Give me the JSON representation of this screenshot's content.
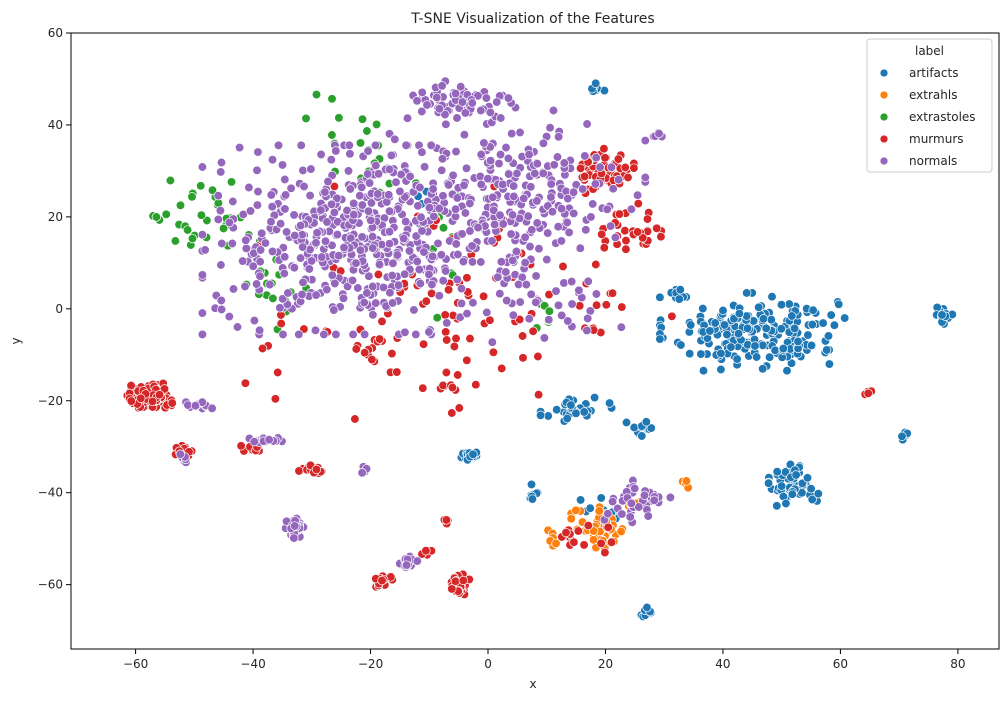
{
  "chart_data": {
    "type": "scatter",
    "title": "T-SNE Visualization of the Features",
    "xlabel": "x",
    "ylabel": "y",
    "xlim": [
      -71,
      87
    ],
    "ylim": [
      -74,
      60
    ],
    "xticks": [
      -60,
      -40,
      -20,
      0,
      20,
      40,
      60,
      80
    ],
    "yticks": [
      -60,
      -40,
      -20,
      0,
      20,
      40,
      60
    ],
    "grid": false,
    "legend": {
      "title": "label",
      "placement": "top-right"
    },
    "series": [
      {
        "name": "artifacts",
        "color": "#1f77b4",
        "clusters": [
          {
            "center": [
              45,
              -5
            ],
            "spread": [
              13,
              7
            ],
            "count": 220
          },
          {
            "center": [
              52,
              -38
            ],
            "spread": [
              3.5,
              4
            ],
            "count": 60
          },
          {
            "center": [
              15,
              -22
            ],
            "spread": [
              5,
              2.5
            ],
            "count": 30
          },
          {
            "center": [
              26,
              -26
            ],
            "spread": [
              2,
              3
            ],
            "count": 12
          },
          {
            "center": [
              -3,
              -32
            ],
            "spread": [
              1.5,
              1
            ],
            "count": 18
          },
          {
            "center": [
              27,
              -66
            ],
            "spread": [
              1,
              1
            ],
            "count": 10
          },
          {
            "center": [
              71,
              -27.5
            ],
            "spread": [
              1,
              1
            ],
            "count": 8
          },
          {
            "center": [
              77,
              -1.5
            ],
            "spread": [
              2,
              1.5
            ],
            "count": 14
          },
          {
            "center": [
              8,
              -40
            ],
            "spread": [
              1,
              1.5
            ],
            "count": 8
          },
          {
            "center": [
              19,
              -43
            ],
            "spread": [
              4,
              3
            ],
            "count": 12
          },
          {
            "center": [
              19,
              48
            ],
            "spread": [
              1.5,
              1
            ],
            "count": 8
          },
          {
            "center": [
              33,
              3
            ],
            "spread": [
              2,
              2
            ],
            "count": 8
          },
          {
            "center": [
              -12,
              25
            ],
            "spread": [
              4,
              3
            ],
            "count": 5
          }
        ]
      },
      {
        "name": "extrahls",
        "color": "#ff7f0e",
        "clusters": [
          {
            "center": [
              19,
              -48
            ],
            "spread": [
              4,
              4
            ],
            "count": 55
          },
          {
            "center": [
              11,
              -50
            ],
            "spread": [
              1,
              1.5
            ],
            "count": 6
          },
          {
            "center": [
              25,
              -42
            ],
            "spread": [
              1.5,
              1.5
            ],
            "count": 8
          },
          {
            "center": [
              34,
              -38
            ],
            "spread": [
              0.7,
              1
            ],
            "count": 5
          }
        ]
      },
      {
        "name": "extrastoles",
        "color": "#2ca02c",
        "clusters": [
          {
            "center": [
              -48,
              20
            ],
            "spread": [
              6,
              8
            ],
            "count": 28
          },
          {
            "center": [
              -37,
              5
            ],
            "spread": [
              5,
              8
            ],
            "count": 18
          },
          {
            "center": [
              -20,
              30
            ],
            "spread": [
              5,
              10
            ],
            "count": 14
          },
          {
            "center": [
              -8,
              15
            ],
            "spread": [
              5,
              15
            ],
            "count": 12
          },
          {
            "center": [
              -25,
              42
            ],
            "spread": [
              10,
              5
            ],
            "count": 8
          },
          {
            "center": [
              10,
              -1
            ],
            "spread": [
              3,
              3
            ],
            "count": 6
          },
          {
            "center": [
              -56,
              20
            ],
            "spread": [
              1,
              1
            ],
            "count": 4
          }
        ]
      },
      {
        "name": "murmurs",
        "color": "#d62728",
        "clusters": [
          {
            "center": [
              -58,
              -19
            ],
            "spread": [
              3.5,
              2.3
            ],
            "count": 95
          },
          {
            "center": [
              20,
              30
            ],
            "spread": [
              4,
              4
            ],
            "count": 60
          },
          {
            "center": [
              25,
              17
            ],
            "spread": [
              5,
              4
            ],
            "count": 30
          },
          {
            "center": [
              -5,
              -60
            ],
            "spread": [
              1.5,
              2
            ],
            "count": 38
          },
          {
            "center": [
              -52,
              -31
            ],
            "spread": [
              1.5,
              1
            ],
            "count": 16
          },
          {
            "center": [
              -30,
              -35
            ],
            "spread": [
              1.8,
              0.8
            ],
            "count": 12
          },
          {
            "center": [
              -18,
              -59
            ],
            "spread": [
              2,
              1.2
            ],
            "count": 14
          },
          {
            "center": [
              -10,
              -53
            ],
            "spread": [
              1.5,
              0.6
            ],
            "count": 6
          },
          {
            "center": [
              -40,
              -30.5
            ],
            "spread": [
              2.5,
              1
            ],
            "count": 10
          },
          {
            "center": [
              -7,
              -46
            ],
            "spread": [
              0.6,
              0.6
            ],
            "count": 5
          },
          {
            "center": [
              -5,
              0
            ],
            "spread": [
              30,
              22
            ],
            "count": 110
          },
          {
            "center": [
              -20,
              -9
            ],
            "spread": [
              3,
              2
            ],
            "count": 12
          },
          {
            "center": [
              15,
              -50
            ],
            "spread": [
              5,
              2.5
            ],
            "count": 16
          },
          {
            "center": [
              65,
              -18
            ],
            "spread": [
              1.5,
              0.8
            ],
            "count": 4
          },
          {
            "center": [
              -7,
              -17
            ],
            "spread": [
              1.5,
              0.8
            ],
            "count": 6
          }
        ]
      },
      {
        "name": "normals",
        "color": "#9467bd",
        "clusters": [
          {
            "center": [
              -22,
              15
            ],
            "spread": [
              22,
              17
            ],
            "count": 540
          },
          {
            "center": [
              5,
              25
            ],
            "spread": [
              18,
              15
            ],
            "count": 230
          },
          {
            "center": [
              -5,
              45
            ],
            "spread": [
              8,
              4
            ],
            "count": 70
          },
          {
            "center": [
              -33,
              -48
            ],
            "spread": [
              1.8,
              2
            ],
            "count": 40
          },
          {
            "center": [
              -14,
              -55
            ],
            "spread": [
              2,
              1.5
            ],
            "count": 16
          },
          {
            "center": [
              -37,
              -28.5
            ],
            "spread": [
              3,
              0.8
            ],
            "count": 14
          },
          {
            "center": [
              25,
              -42
            ],
            "spread": [
              5,
              4
            ],
            "count": 40
          },
          {
            "center": [
              -50,
              -21
            ],
            "spread": [
              2.5,
              1
            ],
            "count": 12
          },
          {
            "center": [
              10,
              0
            ],
            "spread": [
              12,
              6
            ],
            "count": 35
          },
          {
            "center": [
              29,
              38
            ],
            "spread": [
              0.7,
              0.7
            ],
            "count": 6
          },
          {
            "center": [
              -52,
              -33
            ],
            "spread": [
              1,
              1.5
            ],
            "count": 6
          },
          {
            "center": [
              -21,
              -35
            ],
            "spread": [
              0.7,
              1
            ],
            "count": 5
          }
        ]
      }
    ]
  }
}
